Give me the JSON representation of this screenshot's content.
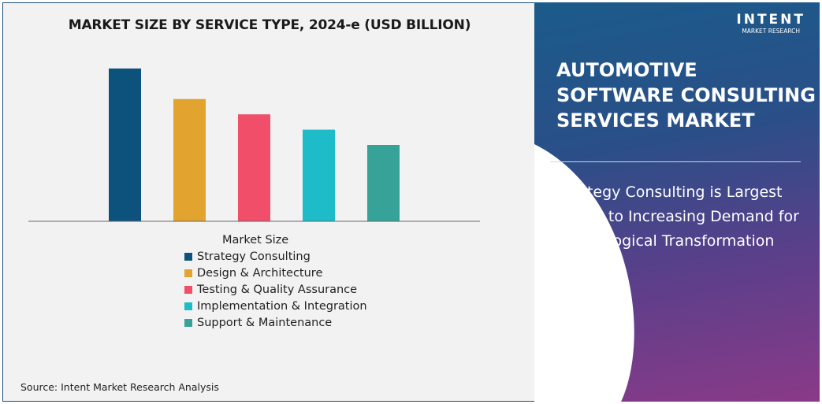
{
  "chart_data": {
    "type": "bar",
    "title": "MARKET SIZE BY SERVICE TYPE, 2024-e (USD BILLION)",
    "legend_title": "Market Size",
    "categories": [
      "Strategy Consulting",
      "Design & Architecture",
      "Testing & Quality Assurance",
      "Implementation & Integration",
      "Support & Maintenance"
    ],
    "values": [
      100,
      80,
      70,
      60,
      50
    ],
    "colors": [
      "#0d527c",
      "#e2a42e",
      "#f04e69",
      "#1dbcc8",
      "#37a297"
    ],
    "legend_position": "bottom",
    "grid": false
  },
  "source": "Source: Intent Market Research Analysis",
  "side": {
    "title": "AUTOMOTIVE SOFTWARE CONSULTING SERVICES MARKET",
    "subtitle": "Strategy Consulting is Largest Owing to Increasing Demand for Technological Transformation"
  },
  "logo": {
    "name": "INTENT",
    "tagline": "MARKET RESEARCH"
  }
}
